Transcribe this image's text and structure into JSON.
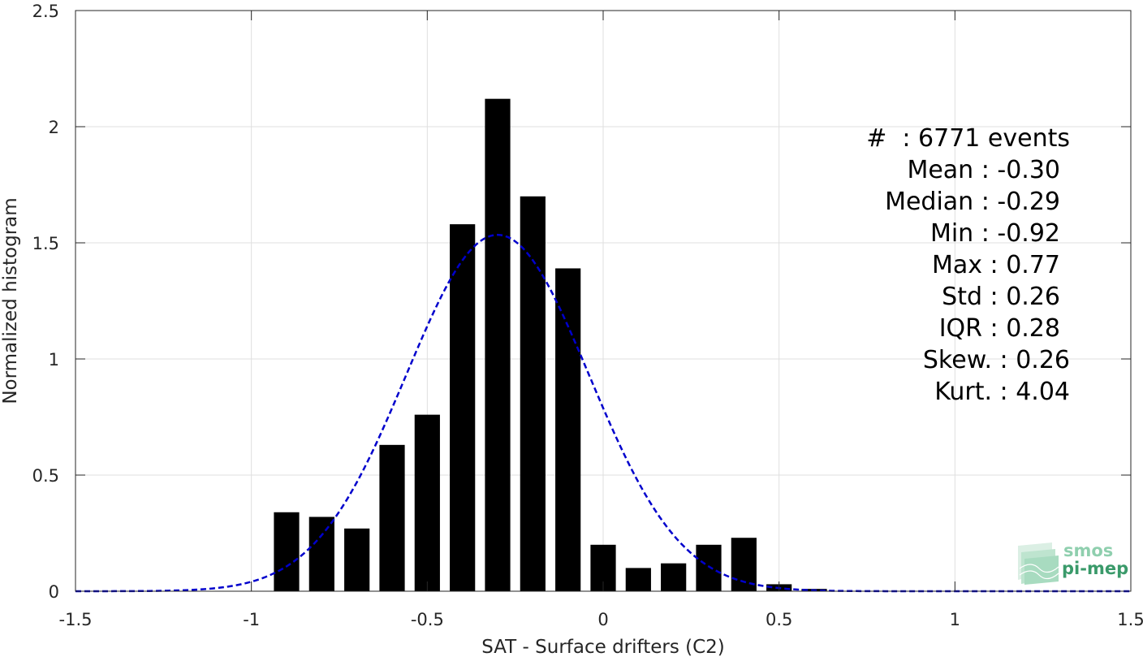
{
  "chart_data": {
    "type": "bar",
    "title": "",
    "xlabel": "SAT - Surface drifters (C2)",
    "ylabel": "Normalized histogram",
    "xlim": [
      -1.5,
      1.5
    ],
    "ylim": [
      0,
      2.5
    ],
    "grid": true,
    "xticks": [
      "-1.5",
      "-1",
      "-0.5",
      "0",
      "0.5",
      "1",
      "1.5"
    ],
    "yticks": [
      "0",
      "0.5",
      "1",
      "1.5",
      "2",
      "2.5"
    ],
    "bar_color": "#000000",
    "bins": {
      "centers": [
        -0.9,
        -0.8,
        -0.7,
        -0.6,
        -0.5,
        -0.4,
        -0.3,
        -0.2,
        -0.1,
        0.0,
        0.1,
        0.2,
        0.3,
        0.4,
        0.5,
        0.6
      ],
      "values": [
        0.34,
        0.32,
        0.27,
        0.63,
        0.76,
        1.58,
        2.12,
        1.7,
        1.39,
        0.2,
        0.1,
        0.12,
        0.2,
        0.23,
        0.03,
        0.01
      ]
    },
    "fit_curve": {
      "style": "dashed",
      "color": "#0000cc",
      "mean": -0.3,
      "std": 0.26
    },
    "annotations": [
      "#  : 6771 events",
      "Mean : -0.30",
      "Median : -0.29",
      "Min : -0.92",
      "Max : 0.77",
      "Std : 0.26",
      "IQR : 0.28",
      "Skew. : 0.26",
      "Kurt. : 4.04"
    ]
  },
  "logo": {
    "line1": "smos",
    "line2": "pi-mep",
    "color": "#3a9a6a"
  }
}
